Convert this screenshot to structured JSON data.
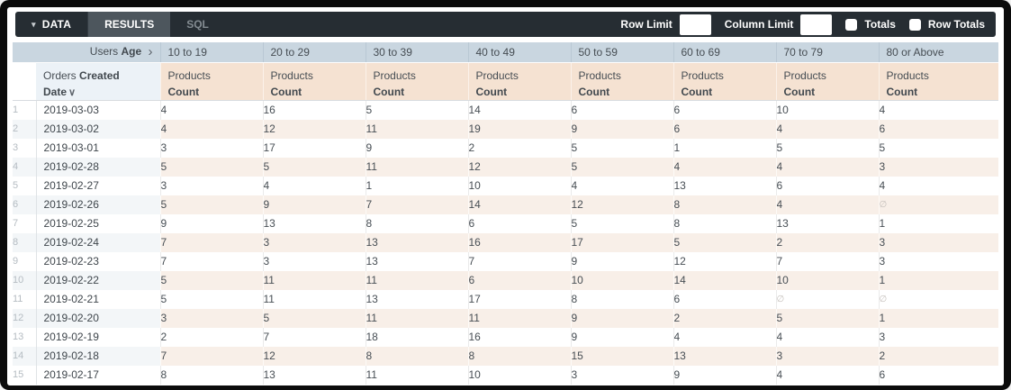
{
  "toolbar": {
    "data_tab": "DATA",
    "results_tab": "RESULTS",
    "sql_tab": "SQL",
    "row_limit_label": "Row Limit",
    "row_limit_value": "",
    "column_limit_label": "Column Limit",
    "column_limit_value": "",
    "totals_label": "Totals",
    "totals_checked": false,
    "row_totals_label": "Row Totals",
    "row_totals_checked": false
  },
  "icons": {
    "caret_down": "▾",
    "chevron_right": "›",
    "chevron_down": "∨"
  },
  "colors": {
    "topbar": "#262d33",
    "active_tab": "#4d565d",
    "pivot_header_blue": "#c9d6e0",
    "measure_header_peach": "#f5e2d2",
    "row_stripe_warm": "#f8efe8",
    "row_stripe_cool": "#f3f6f8"
  },
  "table": {
    "pivot": {
      "view": "Users",
      "field": "Age"
    },
    "row_dim": {
      "view": "Orders",
      "field": "Created Date"
    },
    "measure": {
      "view": "Products",
      "field": "Count"
    },
    "age_buckets": [
      "10 to 19",
      "20 to 29",
      "30 to 39",
      "40 to 49",
      "50 to 59",
      "60 to 69",
      "70 to 79",
      "80 or Above"
    ],
    "null_symbol": "∅",
    "rows": [
      {
        "index": 1,
        "date": "2019-03-03",
        "values": [
          4,
          16,
          5,
          14,
          6,
          6,
          10,
          4
        ]
      },
      {
        "index": 2,
        "date": "2019-03-02",
        "values": [
          4,
          12,
          11,
          19,
          9,
          6,
          4,
          6
        ]
      },
      {
        "index": 3,
        "date": "2019-03-01",
        "values": [
          3,
          17,
          9,
          2,
          5,
          1,
          5,
          5
        ]
      },
      {
        "index": 4,
        "date": "2019-02-28",
        "values": [
          5,
          5,
          11,
          12,
          5,
          4,
          4,
          3
        ]
      },
      {
        "index": 5,
        "date": "2019-02-27",
        "values": [
          3,
          4,
          1,
          10,
          4,
          13,
          6,
          4
        ]
      },
      {
        "index": 6,
        "date": "2019-02-26",
        "values": [
          5,
          9,
          7,
          14,
          12,
          8,
          4,
          null
        ]
      },
      {
        "index": 7,
        "date": "2019-02-25",
        "values": [
          9,
          13,
          8,
          6,
          5,
          8,
          13,
          1
        ]
      },
      {
        "index": 8,
        "date": "2019-02-24",
        "values": [
          7,
          3,
          13,
          16,
          17,
          5,
          2,
          3
        ]
      },
      {
        "index": 9,
        "date": "2019-02-23",
        "values": [
          7,
          3,
          13,
          7,
          9,
          12,
          7,
          3
        ]
      },
      {
        "index": 10,
        "date": "2019-02-22",
        "values": [
          5,
          11,
          11,
          6,
          10,
          14,
          10,
          1
        ]
      },
      {
        "index": 11,
        "date": "2019-02-21",
        "values": [
          5,
          11,
          13,
          17,
          8,
          6,
          null,
          null
        ]
      },
      {
        "index": 12,
        "date": "2019-02-20",
        "values": [
          3,
          5,
          11,
          11,
          9,
          2,
          5,
          1
        ]
      },
      {
        "index": 13,
        "date": "2019-02-19",
        "values": [
          2,
          7,
          18,
          16,
          9,
          4,
          4,
          3
        ]
      },
      {
        "index": 14,
        "date": "2019-02-18",
        "values": [
          7,
          12,
          8,
          8,
          15,
          13,
          3,
          2
        ]
      },
      {
        "index": 15,
        "date": "2019-02-17",
        "values": [
          8,
          13,
          11,
          10,
          3,
          9,
          4,
          6
        ]
      }
    ]
  }
}
